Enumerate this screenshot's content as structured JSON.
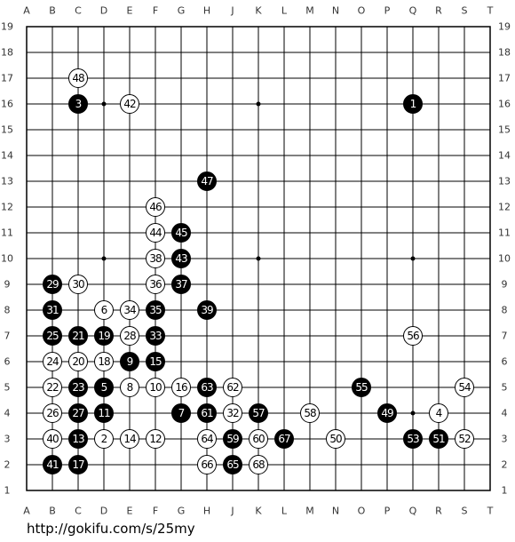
{
  "columns": [
    "A",
    "B",
    "C",
    "D",
    "E",
    "F",
    "G",
    "H",
    "J",
    "K",
    "L",
    "M",
    "N",
    "O",
    "P",
    "Q",
    "R",
    "S",
    "T"
  ],
  "rows": [
    19,
    18,
    17,
    16,
    15,
    14,
    13,
    12,
    11,
    10,
    9,
    8,
    7,
    6,
    5,
    4,
    3,
    2,
    1
  ],
  "stones": [
    {
      "label": 1,
      "color": "black",
      "col": "Q",
      "row": 16
    },
    {
      "label": 2,
      "color": "white",
      "col": "D",
      "row": 3
    },
    {
      "label": 3,
      "color": "black",
      "col": "C",
      "row": 16
    },
    {
      "label": 4,
      "color": "white",
      "col": "R",
      "row": 4
    },
    {
      "label": 5,
      "color": "black",
      "col": "D",
      "row": 5
    },
    {
      "label": 6,
      "color": "white",
      "col": "D",
      "row": 8
    },
    {
      "label": 7,
      "color": "black",
      "col": "G",
      "row": 4
    },
    {
      "label": 8,
      "color": "white",
      "col": "E",
      "row": 5
    },
    {
      "label": 9,
      "color": "black",
      "col": "E",
      "row": 6
    },
    {
      "label": 10,
      "color": "white",
      "col": "F",
      "row": 5
    },
    {
      "label": 11,
      "color": "black",
      "col": "D",
      "row": 4
    },
    {
      "label": 12,
      "color": "white",
      "col": "F",
      "row": 3
    },
    {
      "label": 13,
      "color": "black",
      "col": "C",
      "row": 3
    },
    {
      "label": 14,
      "color": "white",
      "col": "E",
      "row": 3
    },
    {
      "label": 15,
      "color": "black",
      "col": "F",
      "row": 6
    },
    {
      "label": 16,
      "color": "white",
      "col": "G",
      "row": 5
    },
    {
      "label": 17,
      "color": "black",
      "col": "C",
      "row": 2
    },
    {
      "label": 18,
      "color": "white",
      "col": "D",
      "row": 6
    },
    {
      "label": 19,
      "color": "black",
      "col": "D",
      "row": 7
    },
    {
      "label": 20,
      "color": "white",
      "col": "C",
      "row": 6
    },
    {
      "label": 21,
      "color": "black",
      "col": "C",
      "row": 7
    },
    {
      "label": 22,
      "color": "white",
      "col": "B",
      "row": 5
    },
    {
      "label": 23,
      "color": "black",
      "col": "C",
      "row": 5
    },
    {
      "label": 24,
      "color": "white",
      "col": "B",
      "row": 6
    },
    {
      "label": 25,
      "color": "black",
      "col": "B",
      "row": 7
    },
    {
      "label": 26,
      "color": "white",
      "col": "B",
      "row": 4
    },
    {
      "label": 27,
      "color": "black",
      "col": "C",
      "row": 4
    },
    {
      "label": 28,
      "color": "white",
      "col": "E",
      "row": 7
    },
    {
      "label": 29,
      "color": "black",
      "col": "B",
      "row": 9
    },
    {
      "label": 30,
      "color": "white",
      "col": "C",
      "row": 9
    },
    {
      "label": 31,
      "color": "black",
      "col": "B",
      "row": 8
    },
    {
      "label": 32,
      "color": "white",
      "col": "J",
      "row": 4
    },
    {
      "label": 33,
      "color": "black",
      "col": "F",
      "row": 7
    },
    {
      "label": 34,
      "color": "white",
      "col": "E",
      "row": 8
    },
    {
      "label": 35,
      "color": "black",
      "col": "F",
      "row": 8
    },
    {
      "label": 36,
      "color": "white",
      "col": "F",
      "row": 9
    },
    {
      "label": 37,
      "color": "black",
      "col": "G",
      "row": 9
    },
    {
      "label": 38,
      "color": "white",
      "col": "F",
      "row": 10
    },
    {
      "label": 39,
      "color": "black",
      "col": "H",
      "row": 8
    },
    {
      "label": 40,
      "color": "white",
      "col": "B",
      "row": 3
    },
    {
      "label": 41,
      "color": "black",
      "col": "B",
      "row": 2
    },
    {
      "label": 42,
      "color": "white",
      "col": "E",
      "row": 16
    },
    {
      "label": 43,
      "color": "black",
      "col": "G",
      "row": 10
    },
    {
      "label": 44,
      "color": "white",
      "col": "F",
      "row": 11
    },
    {
      "label": 45,
      "color": "black",
      "col": "G",
      "row": 11
    },
    {
      "label": 46,
      "color": "white",
      "col": "F",
      "row": 12
    },
    {
      "label": 47,
      "color": "black",
      "col": "H",
      "row": 13
    },
    {
      "label": 48,
      "color": "white",
      "col": "C",
      "row": 17
    },
    {
      "label": 49,
      "color": "black",
      "col": "P",
      "row": 4
    },
    {
      "label": 50,
      "color": "white",
      "col": "N",
      "row": 3
    },
    {
      "label": 51,
      "color": "black",
      "col": "R",
      "row": 3
    },
    {
      "label": 52,
      "color": "white",
      "col": "S",
      "row": 3
    },
    {
      "label": 53,
      "color": "black",
      "col": "Q",
      "row": 3
    },
    {
      "label": 54,
      "color": "white",
      "col": "S",
      "row": 5
    },
    {
      "label": 55,
      "color": "black",
      "col": "O",
      "row": 5
    },
    {
      "label": 56,
      "color": "white",
      "col": "Q",
      "row": 7
    },
    {
      "label": 57,
      "color": "black",
      "col": "K",
      "row": 4
    },
    {
      "label": 58,
      "color": "white",
      "col": "M",
      "row": 4
    },
    {
      "label": 59,
      "color": "black",
      "col": "J",
      "row": 3
    },
    {
      "label": 60,
      "color": "white",
      "col": "K",
      "row": 3
    },
    {
      "label": 61,
      "color": "black",
      "col": "H",
      "row": 4
    },
    {
      "label": 62,
      "color": "white",
      "col": "J",
      "row": 5
    },
    {
      "label": 63,
      "color": "black",
      "col": "H",
      "row": 5
    },
    {
      "label": 64,
      "color": "white",
      "col": "H",
      "row": 3
    },
    {
      "label": 65,
      "color": "black",
      "col": "J",
      "row": 2
    },
    {
      "label": 66,
      "color": "white",
      "col": "H",
      "row": 2
    },
    {
      "label": 67,
      "color": "black",
      "col": "L",
      "row": 3
    },
    {
      "label": 68,
      "color": "white",
      "col": "K",
      "row": 2
    }
  ],
  "footer": "http://gokifu.com/s/25my"
}
